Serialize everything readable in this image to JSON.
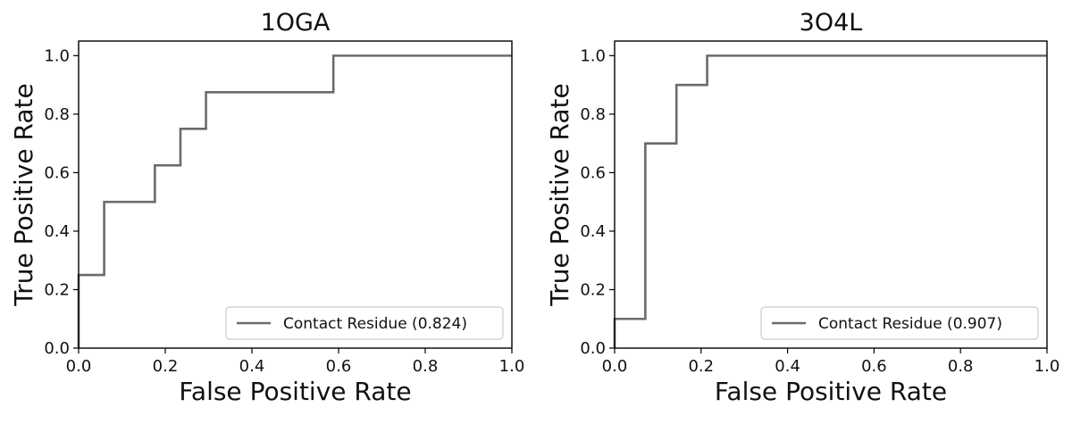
{
  "chart_data": [
    {
      "type": "line",
      "title": "1OGA",
      "xlabel": "False Positive Rate",
      "ylabel": "True Positive Rate",
      "xlim": [
        0.0,
        1.0
      ],
      "ylim": [
        0.0,
        1.05
      ],
      "xticks": [
        "0.0",
        "0.2",
        "0.4",
        "0.6",
        "0.8",
        "1.0"
      ],
      "yticks": [
        "0.0",
        "0.2",
        "0.4",
        "0.6",
        "0.8",
        "1.0"
      ],
      "grid": false,
      "legend_position": "lower-right",
      "series": [
        {
          "name": "Contact Residue (0.824)",
          "color": "#6b6b6b",
          "x": [
            0.0,
            0.0,
            0.059,
            0.059,
            0.176,
            0.176,
            0.235,
            0.235,
            0.294,
            0.294,
            0.588,
            0.588,
            1.0
          ],
          "y": [
            0.0,
            0.25,
            0.25,
            0.5,
            0.5,
            0.625,
            0.625,
            0.75,
            0.75,
            0.875,
            0.875,
            1.0,
            1.0
          ]
        }
      ]
    },
    {
      "type": "line",
      "title": "3O4L",
      "xlabel": "False Positive Rate",
      "ylabel": "True Positive Rate",
      "xlim": [
        0.0,
        1.0
      ],
      "ylim": [
        0.0,
        1.05
      ],
      "xticks": [
        "0.0",
        "0.2",
        "0.4",
        "0.6",
        "0.8",
        "1.0"
      ],
      "yticks": [
        "0.0",
        "0.2",
        "0.4",
        "0.6",
        "0.8",
        "1.0"
      ],
      "grid": false,
      "legend_position": "lower-right",
      "series": [
        {
          "name": "Contact Residue (0.907)",
          "color": "#6b6b6b",
          "x": [
            0.0,
            0.0,
            0.071,
            0.071,
            0.143,
            0.143,
            0.214,
            0.214,
            1.0
          ],
          "y": [
            0.0,
            0.1,
            0.1,
            0.7,
            0.7,
            0.9,
            0.9,
            1.0,
            1.0
          ]
        }
      ]
    }
  ]
}
